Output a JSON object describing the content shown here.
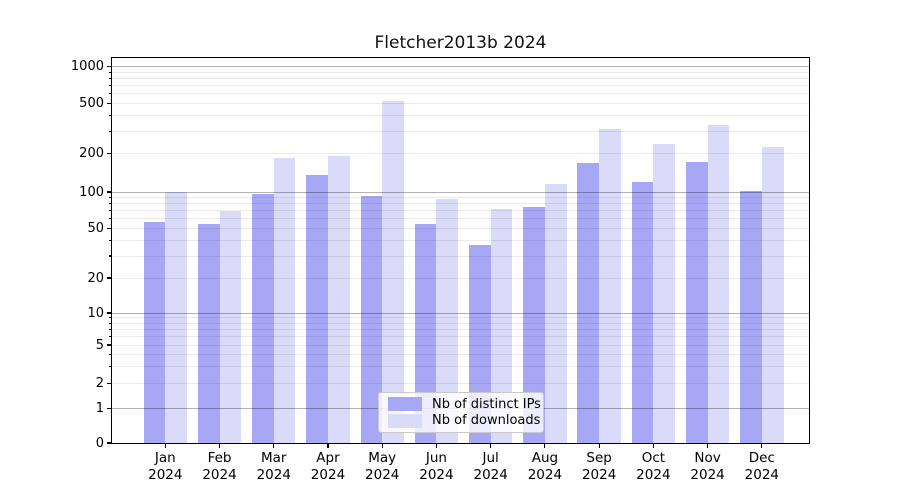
{
  "title": "Fletcher2013b 2024",
  "chart_data": {
    "type": "bar",
    "title": "Fletcher2013b 2024",
    "categories": [
      "Jan 2024",
      "Feb 2024",
      "Mar 2024",
      "Apr 2024",
      "May 2024",
      "Jun 2024",
      "Jul 2024",
      "Aug 2024",
      "Sep 2024",
      "Oct 2024",
      "Nov 2024",
      "Dec 2024"
    ],
    "series": [
      {
        "name": "Nb of distinct IPs",
        "color": "#a7a7f6",
        "values": [
          57,
          54,
          97,
          135,
          93,
          54,
          37,
          75,
          170,
          120,
          172,
          102
        ]
      },
      {
        "name": "Nb of downloads",
        "color": "#dadaf9",
        "values": [
          100,
          70,
          185,
          190,
          520,
          88,
          72,
          115,
          315,
          240,
          335,
          225
        ]
      }
    ],
    "yaxis": {
      "ticks": [
        0,
        1,
        2,
        5,
        10,
        20,
        50,
        100,
        200,
        500,
        1000
      ],
      "scale": "log above 1, linear 0-1",
      "ylim": [
        0,
        1170
      ]
    },
    "xlabel": "",
    "ylabel": "",
    "grid": {
      "horizontal": true,
      "minor": true
    },
    "legend_position": "lower center"
  },
  "legend": {
    "items": [
      {
        "label": "Nb of distinct IPs",
        "color": "#a7a7f6"
      },
      {
        "label": "Nb of downloads",
        "color": "#dadaf9"
      }
    ]
  },
  "colors": {
    "bar_ips": "#a7a7f6",
    "bar_downloads": "#dadaf9",
    "major_grid": "rgba(0,0,0,0.30)",
    "minor_grid": "rgba(0,0,0,0.08)",
    "spine": "#000000",
    "text": "#000000",
    "legend_border": "#c9c9c9",
    "legend_bg": "rgba(255,255,255,0.8)"
  }
}
